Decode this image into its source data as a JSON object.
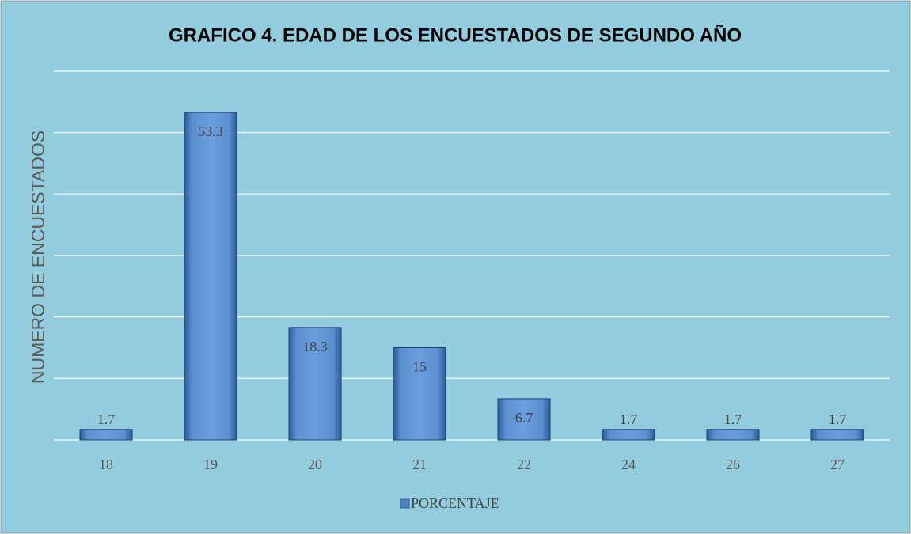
{
  "chart_data": {
    "type": "bar",
    "title": "GRAFICO 4. EDAD DE LOS ENCUESTADOS DE SEGUNDO AÑO",
    "y_label": "NUMERO DE ENCUESTADOS",
    "categories": [
      "18",
      "19",
      "20",
      "21",
      "22",
      "24",
      "26",
      "27"
    ],
    "series": [
      {
        "name": "PORCENTAJE",
        "color": "#4f81bd",
        "values": [
          1.7,
          53.3,
          18.3,
          15,
          6.7,
          1.7,
          1.7,
          1.7
        ]
      }
    ],
    "ylim": [
      0,
      60
    ],
    "yticks": [
      0,
      10,
      20,
      30,
      40,
      50,
      60
    ],
    "grid": true,
    "legend": "bottom"
  }
}
